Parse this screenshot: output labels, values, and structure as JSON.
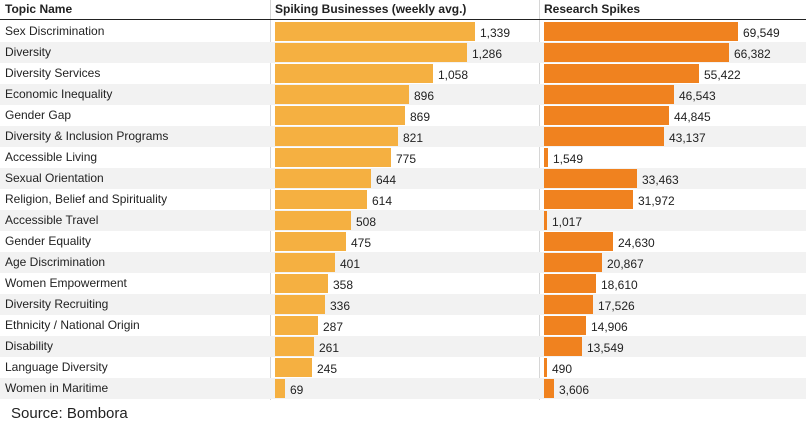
{
  "chart_data": {
    "type": "table",
    "columns": [
      "Topic Name",
      "Spiking Businesses (weekly avg.)",
      "Research Spikes"
    ],
    "rows": [
      {
        "topic": "Sex Discrimination",
        "businesses": 1339,
        "businesses_label": "1,339",
        "research": 69549,
        "research_label": "69,549"
      },
      {
        "topic": "Diversity",
        "businesses": 1286,
        "businesses_label": "1,286",
        "research": 66382,
        "research_label": "66,382"
      },
      {
        "topic": "Diversity Services",
        "businesses": 1058,
        "businesses_label": "1,058",
        "research": 55422,
        "research_label": "55,422"
      },
      {
        "topic": "Economic Inequality",
        "businesses": 896,
        "businesses_label": "896",
        "research": 46543,
        "research_label": "46,543"
      },
      {
        "topic": "Gender Gap",
        "businesses": 869,
        "businesses_label": "869",
        "research": 44845,
        "research_label": "44,845"
      },
      {
        "topic": "Diversity & Inclusion Programs",
        "businesses": 821,
        "businesses_label": "821",
        "research": 43137,
        "research_label": "43,137"
      },
      {
        "topic": "Accessible Living",
        "businesses": 775,
        "businesses_label": "775",
        "research": 1549,
        "research_label": "1,549"
      },
      {
        "topic": "Sexual Orientation",
        "businesses": 644,
        "businesses_label": "644",
        "research": 33463,
        "research_label": "33,463"
      },
      {
        "topic": "Religion, Belief and Spirituality",
        "businesses": 614,
        "businesses_label": "614",
        "research": 31972,
        "research_label": "31,972"
      },
      {
        "topic": "Accessible Travel",
        "businesses": 508,
        "businesses_label": "508",
        "research": 1017,
        "research_label": "1,017"
      },
      {
        "topic": "Gender Equality",
        "businesses": 475,
        "businesses_label": "475",
        "research": 24630,
        "research_label": "24,630"
      },
      {
        "topic": "Age Discrimination",
        "businesses": 401,
        "businesses_label": "401",
        "research": 20867,
        "research_label": "20,867"
      },
      {
        "topic": "Women Empowerment",
        "businesses": 358,
        "businesses_label": "358",
        "research": 18610,
        "research_label": "18,610"
      },
      {
        "topic": "Diversity Recruiting",
        "businesses": 336,
        "businesses_label": "336",
        "research": 17526,
        "research_label": "17,526"
      },
      {
        "topic": "Ethnicity / National Origin",
        "businesses": 287,
        "businesses_label": "287",
        "research": 14906,
        "research_label": "14,906"
      },
      {
        "topic": "Disability",
        "businesses": 261,
        "businesses_label": "261",
        "research": 13549,
        "research_label": "13,549"
      },
      {
        "topic": "Language Diversity",
        "businesses": 245,
        "businesses_label": "245",
        "research": 490,
        "research_label": "490"
      },
      {
        "topic": "Women in Maritime",
        "businesses": 69,
        "businesses_label": "69",
        "research": 3606,
        "research_label": "3,606"
      }
    ],
    "businesses_max": 1339,
    "research_max": 69549,
    "colors": {
      "businesses": "#f5b041",
      "research": "#f0821f"
    }
  },
  "header": {
    "topic": "Topic Name",
    "businesses": "Spiking Businesses (weekly avg.)",
    "research": "Research Spikes"
  },
  "footer": {
    "source": "Source: Bombora"
  }
}
